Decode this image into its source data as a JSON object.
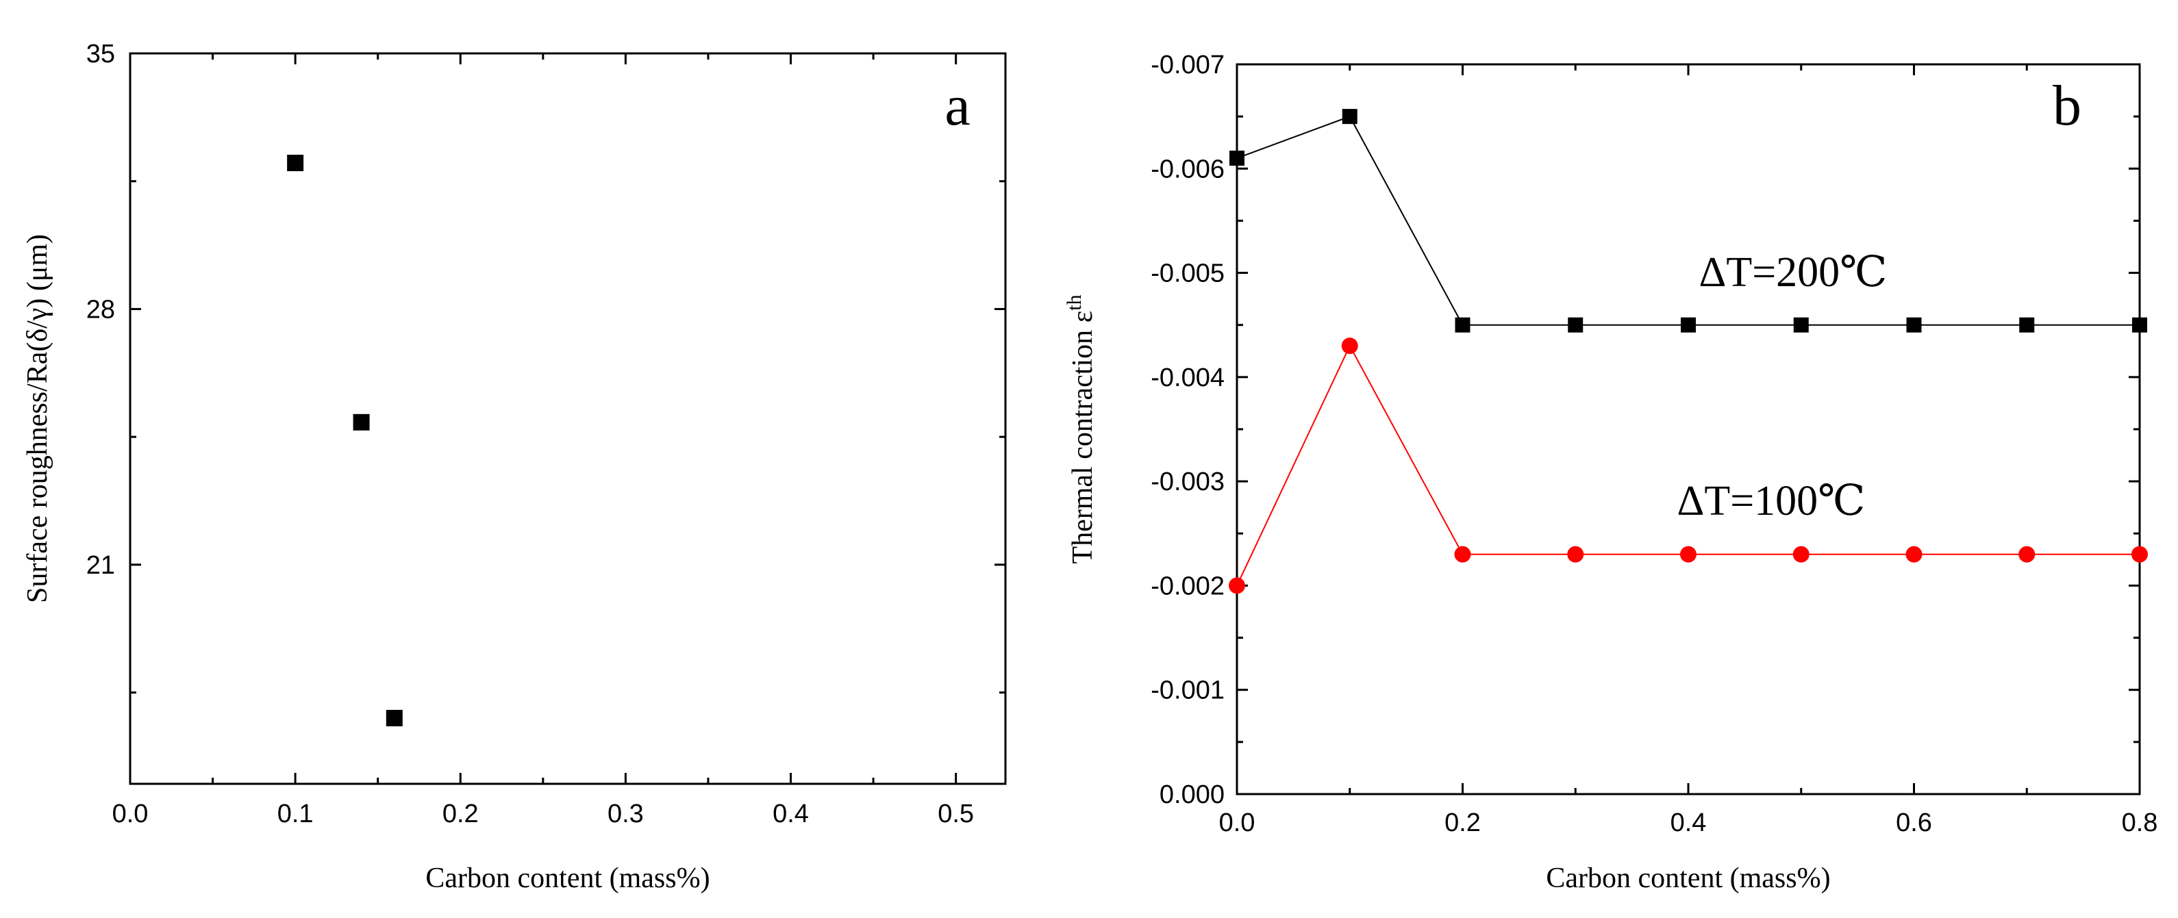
{
  "chart_data": [
    {
      "type": "scatter",
      "panel_label": "a",
      "xlabel": "Carbon content (mass%)",
      "ylabel": "Surface roughness/Ra(δ/γ) (μm)",
      "xlim": [
        0.0,
        0.53
      ],
      "ylim": [
        15,
        35
      ],
      "xticks": [
        "0.0",
        "0.1",
        "0.2",
        "0.3",
        "0.4",
        "0.5"
      ],
      "yticks": [
        "21",
        "28",
        "35"
      ],
      "series": [
        {
          "name": "Ra",
          "marker": "square",
          "color": "#000000",
          "x": [
            0.1,
            0.14,
            0.16
          ],
          "y": [
            32.0,
            24.9,
            16.8
          ]
        }
      ]
    },
    {
      "type": "line",
      "panel_label": "b",
      "xlabel": "Carbon content (mass%)",
      "ylabel": "Thermal contraction ε",
      "ylabel_superscript": "th",
      "xlim": [
        0.0,
        0.8
      ],
      "ylim": [
        0.0,
        -0.007
      ],
      "xticks": [
        "0.0",
        "0.2",
        "0.4",
        "0.6",
        "0.8"
      ],
      "yticks": [
        "0.000",
        "-0.001",
        "-0.002",
        "-0.003",
        "-0.004",
        "-0.005",
        "-0.006",
        "-0.007"
      ],
      "series": [
        {
          "name": "ΔT=200℃",
          "marker": "square",
          "color": "#000000",
          "x": [
            0.0,
            0.1,
            0.2,
            0.3,
            0.4,
            0.5,
            0.6,
            0.7,
            0.8
          ],
          "y": [
            -0.0061,
            -0.0065,
            -0.0045,
            -0.0045,
            -0.0045,
            -0.0045,
            -0.0045,
            -0.0045,
            -0.0045
          ]
        },
        {
          "name": "ΔT=100℃",
          "marker": "circle",
          "color": "#ff0000",
          "x": [
            0.0,
            0.1,
            0.2,
            0.3,
            0.4,
            0.5,
            0.6,
            0.7,
            0.8
          ],
          "y": [
            -0.002,
            -0.0043,
            -0.0023,
            -0.0023,
            -0.0023,
            -0.0023,
            -0.0023,
            -0.0023,
            -0.0023
          ]
        }
      ]
    }
  ]
}
